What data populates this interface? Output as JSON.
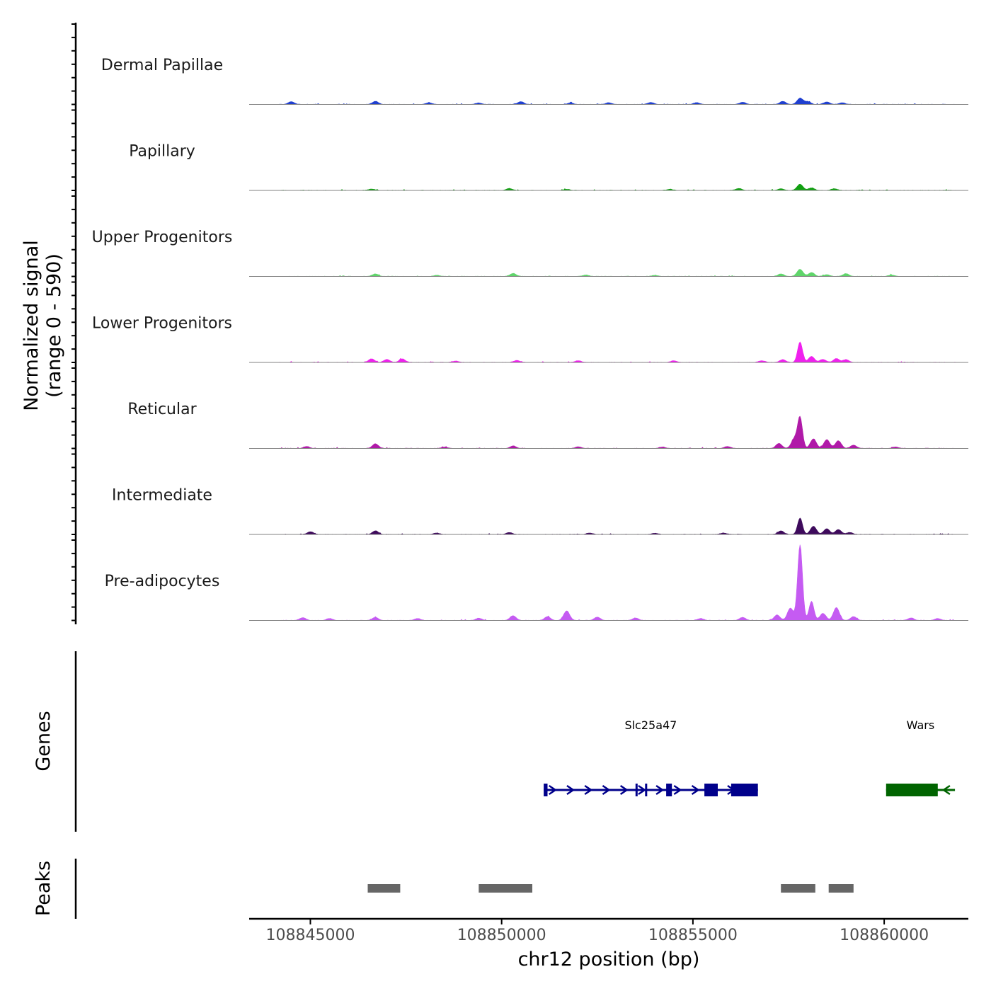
{
  "chart_data": {
    "type": "area",
    "title": "",
    "chromosome": "chr12",
    "xlabel": "chr12 position (bp)",
    "ylabel": "Normalized signal",
    "ylabel_range": "(range 0 - 590)",
    "ylim": [
      0,
      590
    ],
    "xlim": [
      108843400,
      108862200
    ],
    "x_ticks": [
      108845000,
      108850000,
      108855000,
      108860000
    ],
    "x_tick_labels": [
      "108845000",
      "108850000",
      "108855000",
      "108860000"
    ],
    "data_extent": [
      108844200,
      108861850
    ],
    "series": [
      {
        "name": "Dermal Papillae",
        "color": "#1F3FD0",
        "peaks": [
          [
            108844500,
            20
          ],
          [
            108846700,
            22
          ],
          [
            108848100,
            12
          ],
          [
            108849400,
            10
          ],
          [
            108850500,
            20
          ],
          [
            108851800,
            10
          ],
          [
            108852800,
            12
          ],
          [
            108853900,
            14
          ],
          [
            108855100,
            12
          ],
          [
            108856300,
            16
          ],
          [
            108857350,
            22
          ],
          [
            108857800,
            45
          ],
          [
            108858000,
            20
          ],
          [
            108858500,
            18
          ],
          [
            108858900,
            12
          ]
        ]
      },
      {
        "name": "Papillary",
        "color": "#10A010",
        "peaks": [
          [
            108846600,
            10
          ],
          [
            108850200,
            14
          ],
          [
            108851700,
            8
          ],
          [
            108854400,
            8
          ],
          [
            108856200,
            14
          ],
          [
            108857300,
            12
          ],
          [
            108857800,
            45
          ],
          [
            108858100,
            18
          ],
          [
            108858700,
            12
          ]
        ]
      },
      {
        "name": "Upper Progenitors",
        "color": "#5FD56A",
        "peaks": [
          [
            108846700,
            18
          ],
          [
            108848300,
            8
          ],
          [
            108850300,
            22
          ],
          [
            108852200,
            10
          ],
          [
            108854000,
            8
          ],
          [
            108857300,
            18
          ],
          [
            108857800,
            52
          ],
          [
            108858100,
            28
          ],
          [
            108858500,
            12
          ],
          [
            108859000,
            20
          ],
          [
            108860200,
            10
          ]
        ]
      },
      {
        "name": "Lower Progenitors",
        "color": "#F020EE",
        "peaks": [
          [
            108846600,
            26
          ],
          [
            108847000,
            22
          ],
          [
            108847400,
            26
          ],
          [
            108848800,
            10
          ],
          [
            108850400,
            14
          ],
          [
            108852000,
            12
          ],
          [
            108854500,
            12
          ],
          [
            108856800,
            12
          ],
          [
            108857350,
            20
          ],
          [
            108857800,
            150
          ],
          [
            108858100,
            44
          ],
          [
            108858400,
            22
          ],
          [
            108858750,
            28
          ],
          [
            108859000,
            20
          ]
        ]
      },
      {
        "name": "Reticular",
        "color": "#B01AA8",
        "peaks": [
          [
            108844900,
            14
          ],
          [
            108846700,
            34
          ],
          [
            108848500,
            10
          ],
          [
            108850300,
            18
          ],
          [
            108852000,
            12
          ],
          [
            108854200,
            10
          ],
          [
            108855900,
            14
          ],
          [
            108857250,
            36
          ],
          [
            108857650,
            70
          ],
          [
            108857800,
            225
          ],
          [
            108858150,
            70
          ],
          [
            108858500,
            64
          ],
          [
            108858800,
            56
          ],
          [
            108859200,
            24
          ],
          [
            108860300,
            10
          ]
        ]
      },
      {
        "name": "Intermediate",
        "color": "#3E0A5C",
        "peaks": [
          [
            108845000,
            20
          ],
          [
            108846700,
            26
          ],
          [
            108848300,
            10
          ],
          [
            108850200,
            14
          ],
          [
            108852300,
            10
          ],
          [
            108854000,
            8
          ],
          [
            108855800,
            10
          ],
          [
            108857300,
            26
          ],
          [
            108857800,
            120
          ],
          [
            108858150,
            60
          ],
          [
            108858500,
            42
          ],
          [
            108858800,
            36
          ],
          [
            108859100,
            14
          ]
        ]
      },
      {
        "name": "Pre-adipocytes",
        "color": "#C55BF2",
        "peaks": [
          [
            108844800,
            20
          ],
          [
            108845500,
            14
          ],
          [
            108846700,
            22
          ],
          [
            108847800,
            14
          ],
          [
            108849400,
            16
          ],
          [
            108850300,
            34
          ],
          [
            108851200,
            28
          ],
          [
            108851700,
            70
          ],
          [
            108852500,
            24
          ],
          [
            108853500,
            18
          ],
          [
            108855200,
            14
          ],
          [
            108856300,
            22
          ],
          [
            108857200,
            40
          ],
          [
            108857550,
            90
          ],
          [
            108857800,
            555
          ],
          [
            108858100,
            140
          ],
          [
            108858400,
            52
          ],
          [
            108858750,
            95
          ],
          [
            108859200,
            28
          ],
          [
            108860700,
            18
          ],
          [
            108861400,
            14
          ]
        ]
      }
    ],
    "genes": [
      {
        "name": "Slc25a47",
        "strand": "+",
        "color": "#00008B",
        "start": 108851100,
        "end": 108856700,
        "exons": [
          [
            108851100,
            108851200
          ],
          [
            108853500,
            108853540
          ],
          [
            108853750,
            108853790
          ],
          [
            108854300,
            108854450
          ],
          [
            108855300,
            108855650
          ],
          [
            108856000,
            108856700
          ]
        ]
      },
      {
        "name": "Wars",
        "strand": "-",
        "color": "#006400",
        "start": 108860050,
        "end": 108861850,
        "exons": [
          [
            108860050,
            108861400
          ]
        ]
      }
    ],
    "peak_regions": [
      [
        108846500,
        108847350
      ],
      [
        108849400,
        108850800
      ],
      [
        108857300,
        108858200
      ],
      [
        108858550,
        108859200
      ]
    ]
  }
}
